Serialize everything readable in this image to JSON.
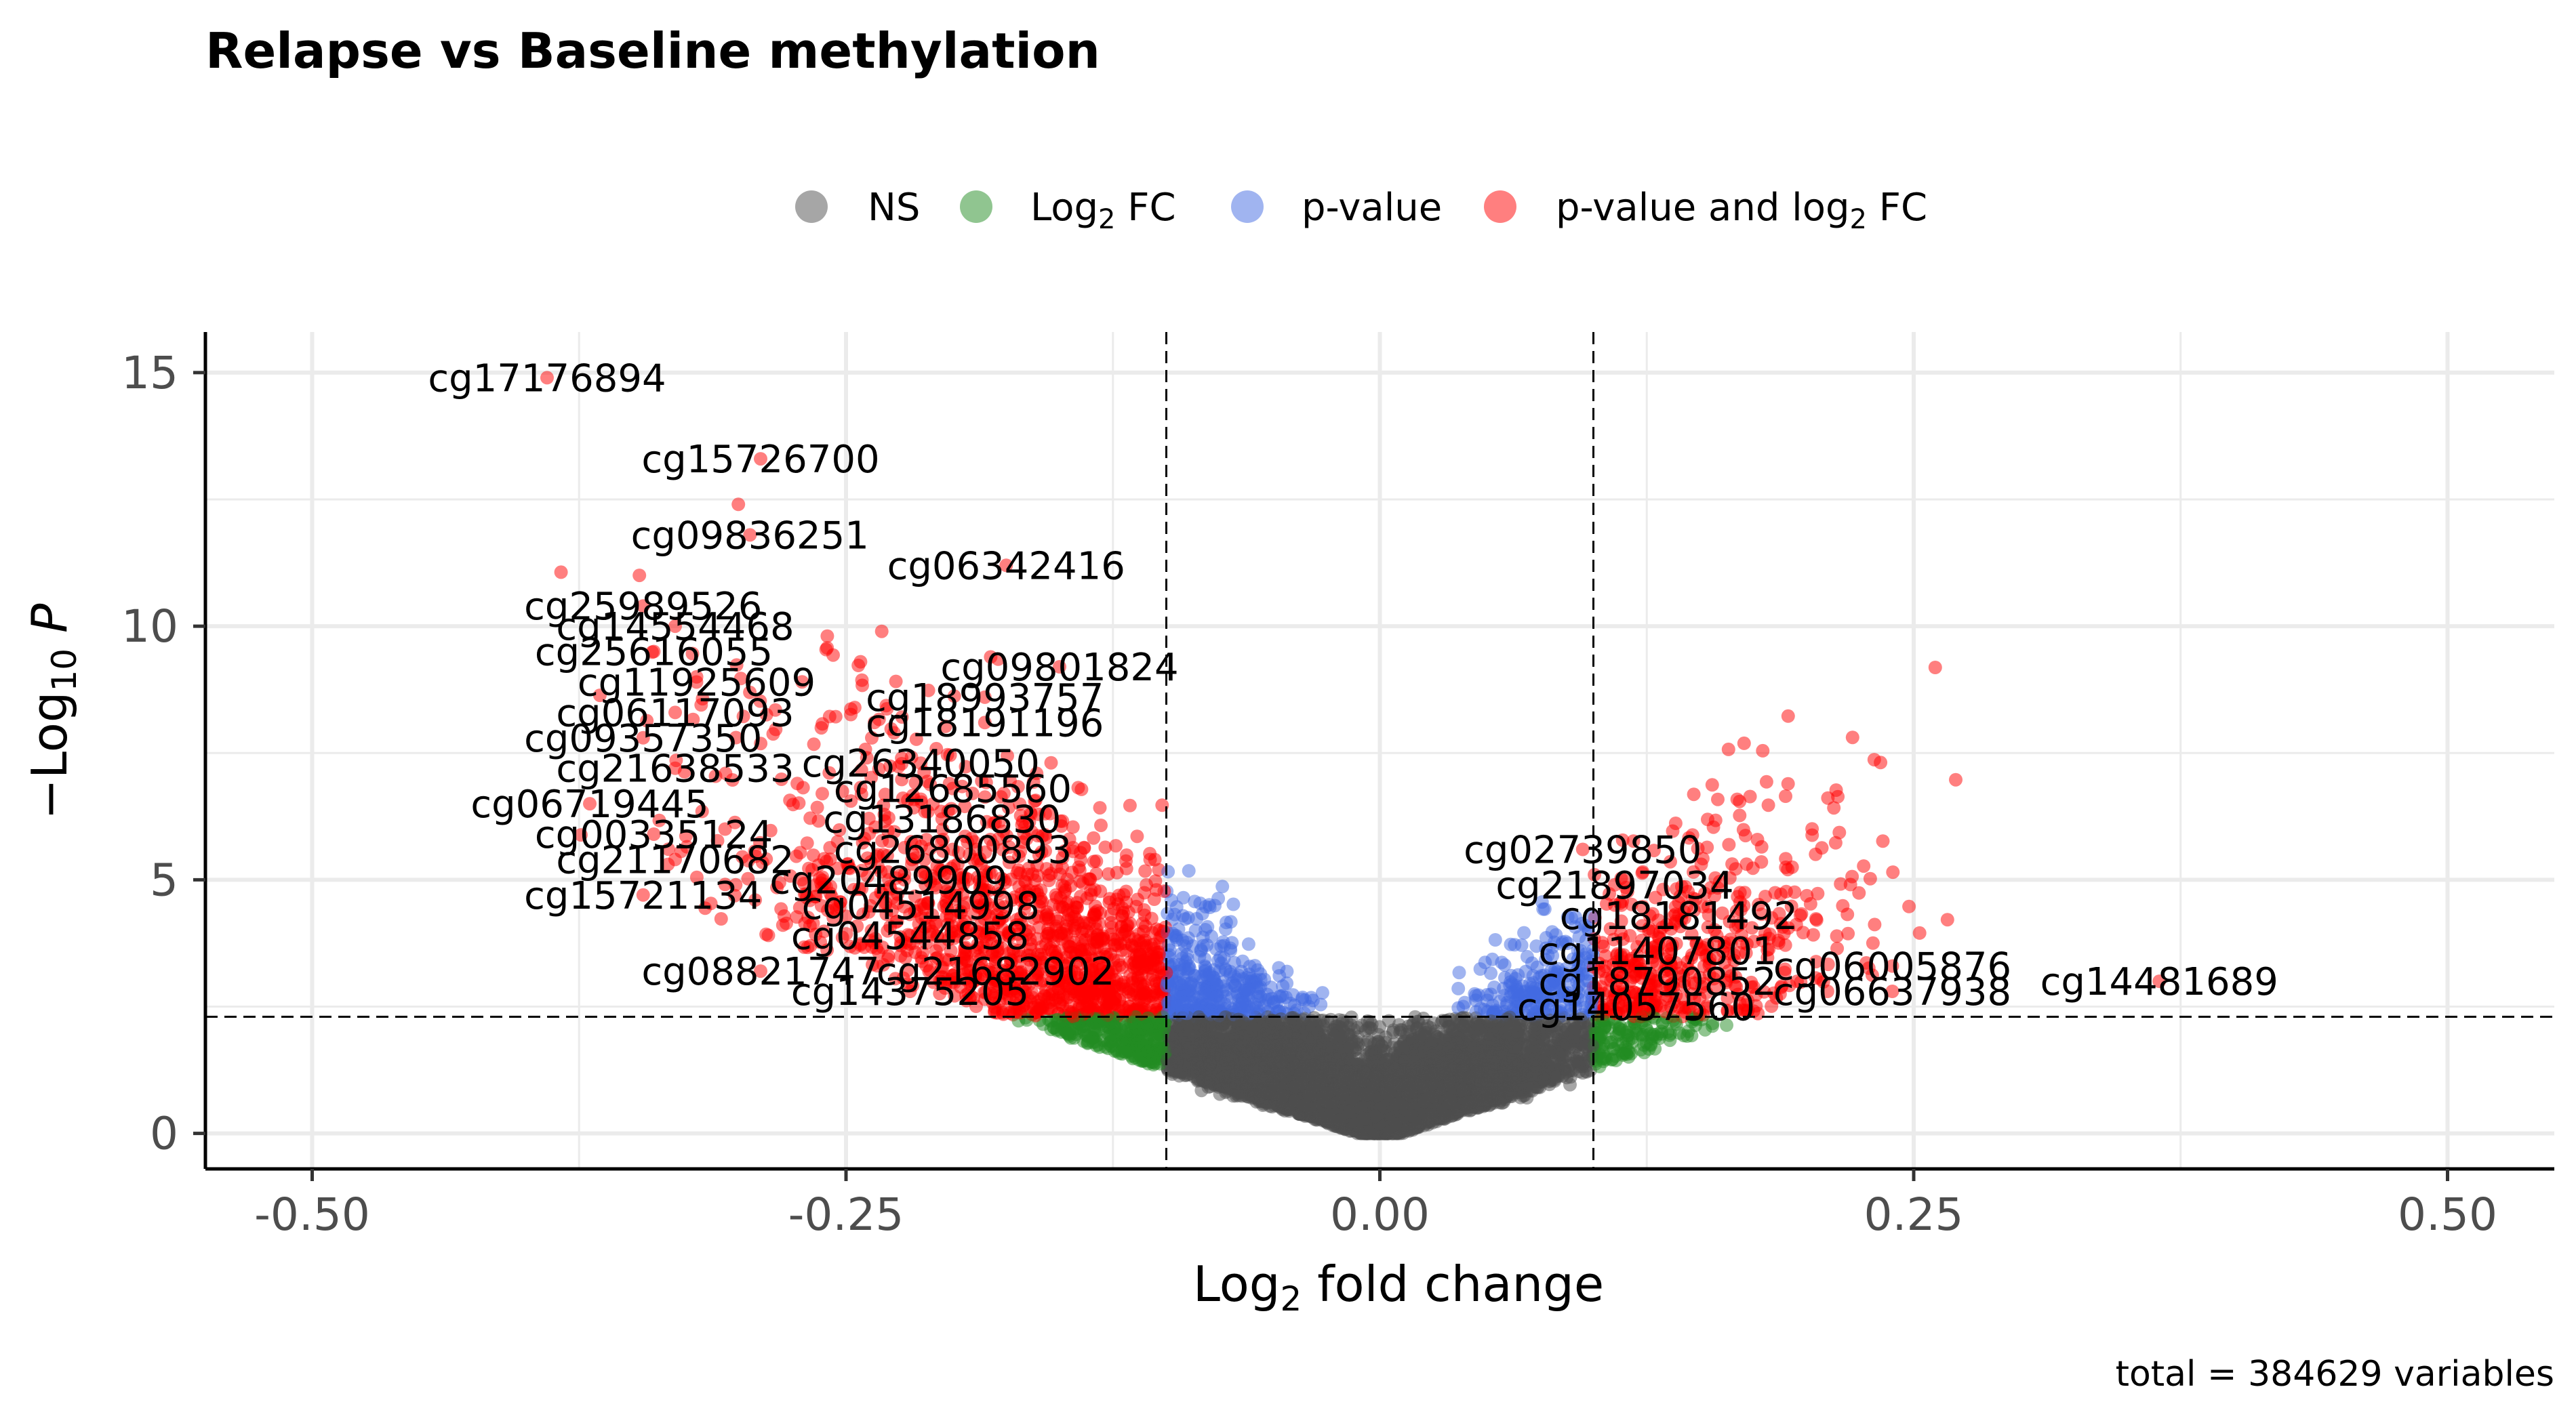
{
  "chart_data": {
    "type": "scatter",
    "title": "Relapse vs Baseline methylation",
    "xlabel": "Log2 fold change",
    "ylabel": "-Log10 P",
    "caption": "total = 384629 variables",
    "xlim": [
      -0.55,
      0.55
    ],
    "ylim": [
      -0.7,
      15.8
    ],
    "x_ticks": [
      -0.5,
      -0.25,
      0.0,
      0.25,
      0.5
    ],
    "x_tick_labels": [
      "-0.50",
      "-0.25",
      "0.00",
      "0.25",
      "0.50"
    ],
    "y_ticks": [
      0,
      5,
      10,
      15
    ],
    "y_tick_labels": [
      "0",
      "5",
      "10",
      "15"
    ],
    "grid": true,
    "fc_cutoff": 0.1,
    "p_cutoff_log10": 2.3,
    "legend_position": "top",
    "legend": [
      {
        "label": "NS",
        "color": "#4d4d4d"
      },
      {
        "label": "Log2 FC",
        "color": "#228b22"
      },
      {
        "label": "p-value",
        "color": "#4169e1"
      },
      {
        "label": "p-value and log2 FC",
        "color": "#ff0000"
      }
    ],
    "labeled_points": [
      {
        "name": "cg17176894",
        "x": -0.39,
        "y": 14.9
      },
      {
        "name": "cg15726700",
        "x": -0.29,
        "y": 13.3
      },
      {
        "name": "cg09836251",
        "x": -0.295,
        "y": 11.8
      },
      {
        "name": "cg06342416",
        "x": -0.175,
        "y": 11.2
      },
      {
        "name": "cg25989526",
        "x": -0.345,
        "y": 10.4
      },
      {
        "name": "cg14554468",
        "x": -0.33,
        "y": 10.0
      },
      {
        "name": "cg25616055",
        "x": -0.34,
        "y": 9.5
      },
      {
        "name": "cg09801824",
        "x": -0.15,
        "y": 9.2
      },
      {
        "name": "cg11925609",
        "x": -0.32,
        "y": 8.9
      },
      {
        "name": "cg18993757",
        "x": -0.185,
        "y": 8.6
      },
      {
        "name": "cg06117093",
        "x": -0.33,
        "y": 8.3
      },
      {
        "name": "cg18191196",
        "x": -0.185,
        "y": 8.1
      },
      {
        "name": "cg09357350",
        "x": -0.345,
        "y": 7.8
      },
      {
        "name": "cg26340050",
        "x": -0.215,
        "y": 7.3
      },
      {
        "name": "cg21638533",
        "x": -0.33,
        "y": 7.2
      },
      {
        "name": "cg12685560",
        "x": -0.2,
        "y": 6.8
      },
      {
        "name": "cg06719445",
        "x": -0.37,
        "y": 6.5
      },
      {
        "name": "cg13186830",
        "x": -0.205,
        "y": 6.2
      },
      {
        "name": "cg00335124",
        "x": -0.34,
        "y": 5.9
      },
      {
        "name": "cg26800893",
        "x": -0.2,
        "y": 5.6
      },
      {
        "name": "cg21170682",
        "x": -0.33,
        "y": 5.4
      },
      {
        "name": "cg20489909",
        "x": -0.23,
        "y": 5.0
      },
      {
        "name": "cg15721134",
        "x": -0.345,
        "y": 4.7
      },
      {
        "name": "cg04514998",
        "x": -0.215,
        "y": 4.5
      },
      {
        "name": "cg04544858",
        "x": -0.22,
        "y": 3.9
      },
      {
        "name": "cg08821747",
        "x": -0.29,
        "y": 3.2
      },
      {
        "name": "cg21682902",
        "x": -0.18,
        "y": 3.2
      },
      {
        "name": "cg14375205",
        "x": -0.22,
        "y": 2.8
      },
      {
        "name": "cg02739850",
        "x": 0.095,
        "y": 5.6
      },
      {
        "name": "cg21897034",
        "x": 0.11,
        "y": 4.9
      },
      {
        "name": "cg18181492",
        "x": 0.14,
        "y": 4.3
      },
      {
        "name": "cg11407801",
        "x": 0.13,
        "y": 3.6
      },
      {
        "name": "cg06005876",
        "x": 0.24,
        "y": 3.3
      },
      {
        "name": "cg18790852",
        "x": 0.13,
        "y": 3.0
      },
      {
        "name": "cg14481689",
        "x": 0.365,
        "y": 3.0
      },
      {
        "name": "cg06637938",
        "x": 0.24,
        "y": 2.8
      },
      {
        "name": "cg14057560",
        "x": 0.12,
        "y": 2.5
      }
    ],
    "point_density_note_series": [
      {
        "name": "NS",
        "x_range": [
          -0.1,
          0.1
        ],
        "y_range": [
          0,
          2.3
        ]
      },
      {
        "name": "Log2 FC",
        "x_range": [
          -0.3,
          0.31
        ],
        "y_range": [
          0.4,
          2.3
        ]
      },
      {
        "name": "p-value",
        "x_range": [
          -0.1,
          0.1
        ],
        "y_range": [
          2.3,
          8.1
        ]
      },
      {
        "name": "p-value and log2 FC",
        "x_range": [
          -0.43,
          0.37
        ],
        "y_range": [
          2.3,
          14.9
        ]
      }
    ]
  }
}
